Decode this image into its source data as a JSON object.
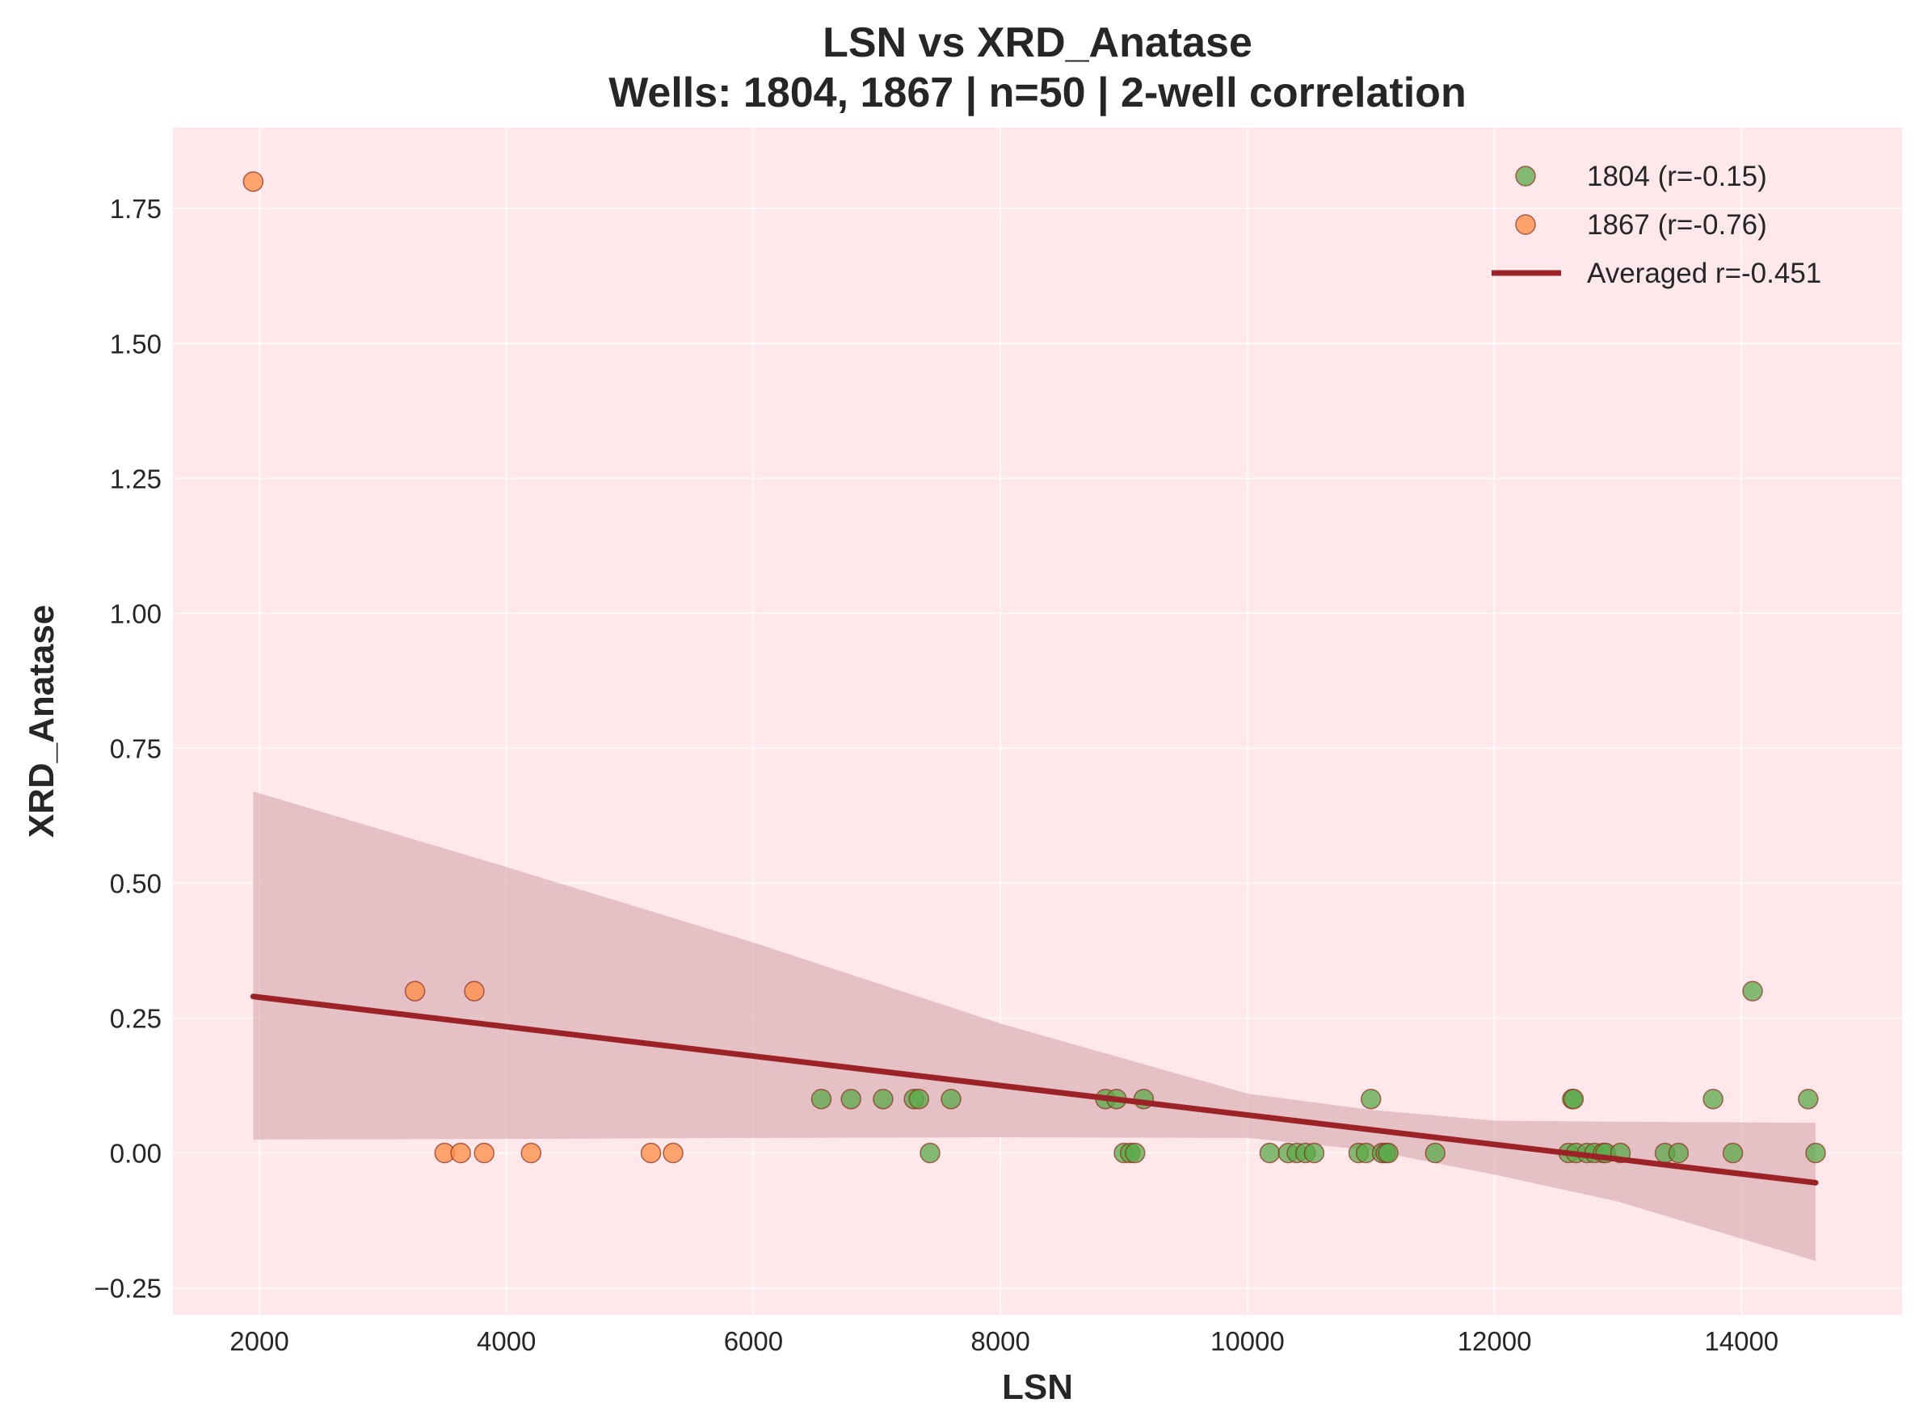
{
  "chart_data": {
    "type": "scatter",
    "title_line1": "LSN vs XRD_Anatase",
    "title_line2": "Wells: 1804, 1867 | n=50 | 2-well correlation",
    "xlabel": "LSN",
    "ylabel": "XRD_Anatase",
    "xlim": [
      1300,
      15300
    ],
    "ylim": [
      -0.3,
      1.9
    ],
    "xticks": [
      2000,
      4000,
      6000,
      8000,
      10000,
      12000,
      14000
    ],
    "yticks": [
      -0.25,
      0.0,
      0.25,
      0.5,
      0.75,
      1.0,
      1.25,
      1.5,
      1.75
    ],
    "xtick_labels": [
      "2000",
      "4000",
      "6000",
      "8000",
      "10000",
      "12000",
      "14000"
    ],
    "ytick_labels": [
      "−0.25",
      "0.00",
      "0.25",
      "0.50",
      "0.75",
      "1.00",
      "1.25",
      "1.50",
      "1.75"
    ],
    "grid": true,
    "legend_position": "top-right",
    "colors": {
      "background": "#ffe8ec",
      "well_1804": "#5aaa4a",
      "well_1867": "#ff8c42",
      "regression": "#9b2226",
      "confidence_band": "#d4a5ab"
    },
    "series": [
      {
        "name": "1804 (r=-0.15)",
        "color": "#5aaa4a",
        "points": [
          [
            6550,
            0.1
          ],
          [
            6790,
            0.1
          ],
          [
            7050,
            0.1
          ],
          [
            7300,
            0.1
          ],
          [
            7340,
            0.1
          ],
          [
            7430,
            0.0
          ],
          [
            7600,
            0.1
          ],
          [
            8850,
            0.1
          ],
          [
            8940,
            0.1
          ],
          [
            9000,
            0.0
          ],
          [
            9050,
            0.0
          ],
          [
            9090,
            0.0
          ],
          [
            9160,
            0.1
          ],
          [
            10180,
            0.0
          ],
          [
            10330,
            0.0
          ],
          [
            10400,
            0.0
          ],
          [
            10470,
            0.0
          ],
          [
            10540,
            0.0
          ],
          [
            10900,
            0.0
          ],
          [
            10960,
            0.0
          ],
          [
            11000,
            0.1
          ],
          [
            11090,
            0.0
          ],
          [
            11120,
            0.0
          ],
          [
            11140,
            0.0
          ],
          [
            11520,
            0.0
          ],
          [
            12600,
            0.0
          ],
          [
            12630,
            0.1
          ],
          [
            12640,
            0.1
          ],
          [
            12660,
            0.0
          ],
          [
            12750,
            0.0
          ],
          [
            12810,
            0.0
          ],
          [
            12880,
            0.0
          ],
          [
            12900,
            0.0
          ],
          [
            13020,
            0.0
          ],
          [
            13380,
            0.0
          ],
          [
            13490,
            0.0
          ],
          [
            13770,
            0.1
          ],
          [
            13930,
            0.0
          ],
          [
            14090,
            0.3
          ],
          [
            14540,
            0.1
          ],
          [
            14600,
            0.0
          ]
        ]
      },
      {
        "name": "1867 (r=-0.76)",
        "color": "#ff8c42",
        "points": [
          [
            1950,
            1.8
          ],
          [
            3260,
            0.3
          ],
          [
            3500,
            0.0
          ],
          [
            3630,
            0.0
          ],
          [
            3740,
            0.3
          ],
          [
            3820,
            0.0
          ],
          [
            4200,
            0.0
          ],
          [
            5170,
            0.0
          ],
          [
            5350,
            0.0
          ]
        ]
      }
    ],
    "regression": {
      "name": "Averaged r=-0.451",
      "x": [
        1950,
        14600
      ],
      "y": [
        0.29,
        -0.055
      ],
      "band_upper": [
        [
          1950,
          0.67
        ],
        [
          4000,
          0.53
        ],
        [
          6000,
          0.39
        ],
        [
          8000,
          0.24
        ],
        [
          10000,
          0.11
        ],
        [
          11000,
          0.08
        ],
        [
          12000,
          0.06
        ],
        [
          13000,
          0.058
        ],
        [
          14600,
          0.056
        ]
      ],
      "band_lower": [
        [
          1950,
          0.025
        ],
        [
          4000,
          0.026
        ],
        [
          6000,
          0.028
        ],
        [
          8000,
          0.029
        ],
        [
          10000,
          0.028
        ],
        [
          11000,
          0.005
        ],
        [
          12000,
          -0.04
        ],
        [
          13000,
          -0.09
        ],
        [
          14600,
          -0.2
        ]
      ]
    }
  }
}
